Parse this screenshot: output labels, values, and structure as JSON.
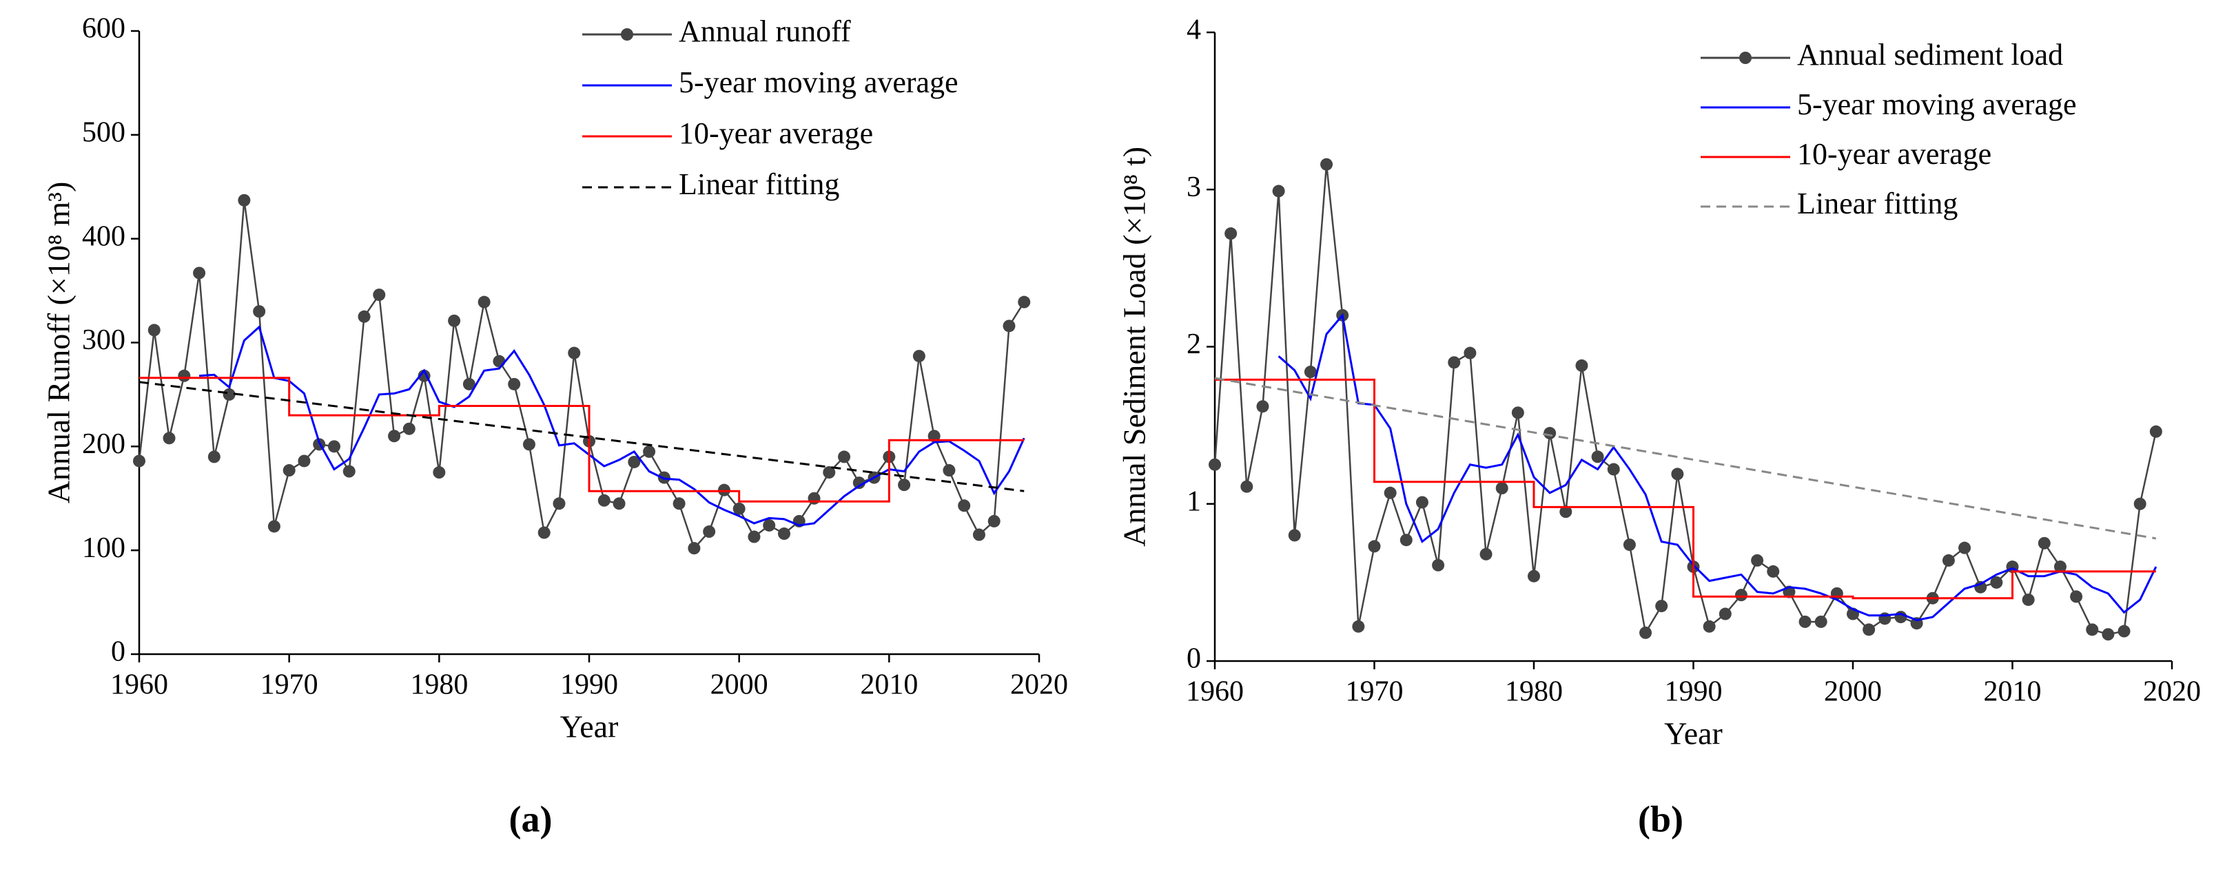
{
  "chart_data": [
    {
      "type": "line",
      "label": "(a)",
      "xlabel": "Year",
      "ylabel": "Annual Runoff (×10⁸ m³)",
      "xlim": [
        1960,
        2020
      ],
      "xticks": [
        1960,
        1970,
        1980,
        1990,
        2000,
        2010,
        2020
      ],
      "ylim": [
        0,
        600
      ],
      "yticks": [
        0,
        100,
        200,
        300,
        400,
        500,
        600
      ],
      "x": [
        1960,
        1961,
        1962,
        1963,
        1964,
        1965,
        1966,
        1967,
        1968,
        1969,
        1970,
        1971,
        1972,
        1973,
        1974,
        1975,
        1976,
        1977,
        1978,
        1979,
        1980,
        1981,
        1982,
        1983,
        1984,
        1985,
        1986,
        1987,
        1988,
        1989,
        1990,
        1991,
        1992,
        1993,
        1994,
        1995,
        1996,
        1997,
        1998,
        1999,
        2000,
        2001,
        2002,
        2003,
        2004,
        2005,
        2006,
        2007,
        2008,
        2009,
        2010,
        2011,
        2012,
        2013,
        2014,
        2015,
        2016,
        2017,
        2018,
        2019
      ],
      "series": [
        {
          "name": "Annual runoff",
          "color": "#444444",
          "marker": true,
          "values": [
            186,
            312,
            208,
            268,
            367,
            190,
            250,
            437,
            330,
            123,
            177,
            186,
            202,
            200,
            176,
            325,
            346,
            210,
            217,
            268,
            175,
            321,
            260,
            339,
            282,
            260,
            202,
            117,
            145,
            290,
            205,
            148,
            145,
            185,
            195,
            170,
            145,
            102,
            118,
            158,
            140,
            113,
            124,
            116,
            128,
            150,
            175,
            190,
            165,
            170,
            190,
            163,
            287,
            210,
            177,
            143,
            115,
            128,
            316,
            339
          ]
        },
        {
          "name": "5-year moving average",
          "color": "#0000ff",
          "values": [
            null,
            null,
            null,
            null,
            268,
            269,
            257,
            302,
            315,
            266,
            263,
            251,
            204,
            178,
            188,
            218,
            250,
            251,
            255,
            273,
            243,
            238,
            248,
            273,
            275,
            292,
            269,
            240,
            201,
            203,
            192,
            181,
            187,
            195,
            176,
            169,
            168,
            159,
            146,
            139,
            133,
            126,
            131,
            130,
            124,
            126,
            139,
            152,
            162,
            170,
            178,
            176,
            195,
            204,
            205,
            196,
            186,
            155,
            176,
            208
          ]
        },
        {
          "name": "10-year average",
          "color": "#ff0000",
          "step": true,
          "values": [
            266,
            266,
            266,
            266,
            266,
            266,
            266,
            266,
            266,
            266,
            230,
            230,
            230,
            230,
            230,
            230,
            230,
            230,
            230,
            230,
            239,
            239,
            239,
            239,
            239,
            239,
            239,
            239,
            239,
            239,
            157,
            157,
            157,
            157,
            157,
            157,
            157,
            157,
            157,
            157,
            147,
            147,
            147,
            147,
            147,
            147,
            147,
            147,
            147,
            147,
            206,
            206,
            206,
            206,
            206,
            206,
            206,
            206,
            206,
            206
          ]
        },
        {
          "name": "Linear fitting",
          "color": "#000000",
          "dash": true,
          "x": [
            1960,
            2019
          ],
          "values": [
            262,
            157
          ]
        }
      ]
    },
    {
      "type": "line",
      "label": "(b)",
      "xlabel": "Year",
      "ylabel": "Annual Sediment Load (×10⁸ t)",
      "xlim": [
        1960,
        2020
      ],
      "xticks": [
        1960,
        1970,
        1980,
        1990,
        2000,
        2010,
        2020
      ],
      "ylim": [
        0,
        4
      ],
      "yticks": [
        0,
        1,
        2,
        3,
        4
      ],
      "x": [
        1960,
        1961,
        1962,
        1963,
        1964,
        1965,
        1966,
        1967,
        1968,
        1969,
        1970,
        1971,
        1972,
        1973,
        1974,
        1975,
        1976,
        1977,
        1978,
        1979,
        1980,
        1981,
        1982,
        1983,
        1984,
        1985,
        1986,
        1987,
        1988,
        1989,
        1990,
        1991,
        1992,
        1993,
        1994,
        1995,
        1996,
        1997,
        1998,
        1999,
        2000,
        2001,
        2002,
        2003,
        2004,
        2005,
        2006,
        2007,
        2008,
        2009,
        2010,
        2011,
        2012,
        2013,
        2014,
        2015,
        2016,
        2017,
        2018,
        2019
      ],
      "series": [
        {
          "name": "Annual sediment load",
          "color": "#444444",
          "marker": true,
          "values": [
            1.25,
            2.72,
            1.11,
            1.62,
            2.99,
            0.8,
            1.84,
            3.16,
            2.2,
            0.22,
            0.73,
            1.07,
            0.77,
            1.01,
            0.61,
            1.9,
            1.96,
            0.68,
            1.1,
            1.58,
            0.54,
            1.45,
            0.95,
            1.88,
            1.3,
            1.22,
            0.74,
            0.18,
            0.35,
            1.19,
            0.6,
            0.22,
            0.3,
            0.42,
            0.64,
            0.57,
            0.44,
            0.25,
            0.25,
            0.43,
            0.3,
            0.2,
            0.27,
            0.28,
            0.24,
            0.4,
            0.64,
            0.72,
            0.47,
            0.5,
            0.6,
            0.39,
            0.75,
            0.6,
            0.41,
            0.2,
            0.17,
            0.19,
            1.0,
            1.46
          ]
        },
        {
          "name": "5-year moving average",
          "color": "#0000ff",
          "values": [
            null,
            null,
            null,
            null,
            1.94,
            1.85,
            1.67,
            2.08,
            2.2,
            1.64,
            1.63,
            1.48,
            1.0,
            0.76,
            0.84,
            1.07,
            1.25,
            1.23,
            1.25,
            1.44,
            1.17,
            1.07,
            1.12,
            1.28,
            1.22,
            1.36,
            1.22,
            1.06,
            0.76,
            0.74,
            0.61,
            0.51,
            0.53,
            0.55,
            0.44,
            0.43,
            0.47,
            0.46,
            0.43,
            0.39,
            0.33,
            0.29,
            0.29,
            0.3,
            0.26,
            0.28,
            0.37,
            0.46,
            0.49,
            0.55,
            0.59,
            0.54,
            0.54,
            0.57,
            0.55,
            0.47,
            0.43,
            0.31,
            0.39,
            0.6
          ]
        },
        {
          "name": "10-year average",
          "color": "#ff0000",
          "step": true,
          "values": [
            1.79,
            1.79,
            1.79,
            1.79,
            1.79,
            1.79,
            1.79,
            1.79,
            1.79,
            1.79,
            1.14,
            1.14,
            1.14,
            1.14,
            1.14,
            1.14,
            1.14,
            1.14,
            1.14,
            1.14,
            0.98,
            0.98,
            0.98,
            0.98,
            0.98,
            0.98,
            0.98,
            0.98,
            0.98,
            0.98,
            0.41,
            0.41,
            0.41,
            0.41,
            0.41,
            0.41,
            0.41,
            0.41,
            0.41,
            0.41,
            0.4,
            0.4,
            0.4,
            0.4,
            0.4,
            0.4,
            0.4,
            0.4,
            0.4,
            0.4,
            0.57,
            0.57,
            0.57,
            0.57,
            0.57,
            0.57,
            0.57,
            0.57,
            0.57,
            0.57
          ]
        },
        {
          "name": "Linear fitting",
          "color": "#888888",
          "dash": true,
          "x": [
            1960,
            2019
          ],
          "values": [
            1.8,
            0.78
          ]
        }
      ]
    }
  ]
}
